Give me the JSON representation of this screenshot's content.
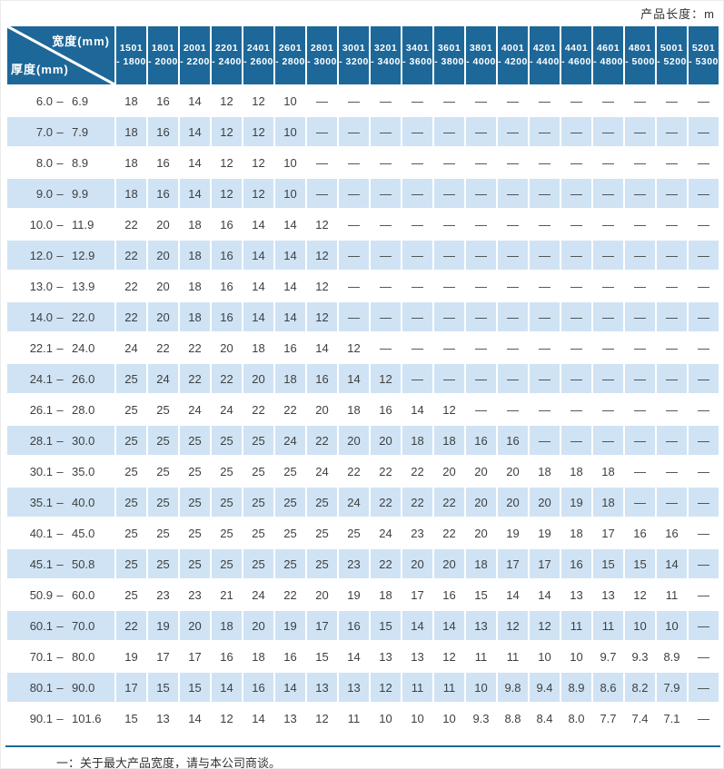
{
  "page": {
    "top_right_label": "产品长度：m",
    "footnote": "一：关于最大产品宽度，请与本公司商谈。"
  },
  "colors": {
    "header_blue": "#1d6899",
    "stripe_blue": "#cfe3f4",
    "rule_blue": "#1d6899",
    "cell_text": "#3f3f3f"
  },
  "table": {
    "range_dash": "–",
    "corner": {
      "top_right": "宽度(mm)",
      "bottom_left": "厚度(mm)"
    },
    "columns": [
      {
        "from": "1501",
        "to": "- 1800"
      },
      {
        "from": "1801",
        "to": "- 2000"
      },
      {
        "from": "2001",
        "to": "- 2200"
      },
      {
        "from": "2201",
        "to": "- 2400"
      },
      {
        "from": "2401",
        "to": "- 2600"
      },
      {
        "from": "2601",
        "to": "- 2800"
      },
      {
        "from": "2801",
        "to": "- 3000"
      },
      {
        "from": "3001",
        "to": "- 3200"
      },
      {
        "from": "3201",
        "to": "- 3400"
      },
      {
        "from": "3401",
        "to": "- 3600"
      },
      {
        "from": "3601",
        "to": "- 3800"
      },
      {
        "from": "3801",
        "to": "- 4000"
      },
      {
        "from": "4001",
        "to": "- 4200"
      },
      {
        "from": "4201",
        "to": "- 4400"
      },
      {
        "from": "4401",
        "to": "- 4600"
      },
      {
        "from": "4601",
        "to": "- 4800"
      },
      {
        "from": "4801",
        "to": "- 5000"
      },
      {
        "from": "5001",
        "to": "- 5200"
      },
      {
        "from": "5201",
        "to": "- 5300"
      }
    ],
    "rows": [
      {
        "min": "6.0",
        "max": "6.9",
        "values": [
          "18",
          "16",
          "14",
          "12",
          "12",
          "10",
          "—",
          "—",
          "—",
          "—",
          "—",
          "—",
          "—",
          "—",
          "—",
          "—",
          "—",
          "—",
          "—"
        ]
      },
      {
        "min": "7.0",
        "max": "7.9",
        "values": [
          "18",
          "16",
          "14",
          "12",
          "12",
          "10",
          "—",
          "—",
          "—",
          "—",
          "—",
          "—",
          "—",
          "—",
          "—",
          "—",
          "—",
          "—",
          "—"
        ]
      },
      {
        "min": "8.0",
        "max": "8.9",
        "values": [
          "18",
          "16",
          "14",
          "12",
          "12",
          "10",
          "—",
          "—",
          "—",
          "—",
          "—",
          "—",
          "—",
          "—",
          "—",
          "—",
          "—",
          "—",
          "—"
        ]
      },
      {
        "min": "9.0",
        "max": "9.9",
        "values": [
          "18",
          "16",
          "14",
          "12",
          "12",
          "10",
          "—",
          "—",
          "—",
          "—",
          "—",
          "—",
          "—",
          "—",
          "—",
          "—",
          "—",
          "—",
          "—"
        ]
      },
      {
        "min": "10.0",
        "max": "11.9",
        "values": [
          "22",
          "20",
          "18",
          "16",
          "14",
          "14",
          "12",
          "—",
          "—",
          "—",
          "—",
          "—",
          "—",
          "—",
          "—",
          "—",
          "—",
          "—",
          "—"
        ]
      },
      {
        "min": "12.0",
        "max": "12.9",
        "values": [
          "22",
          "20",
          "18",
          "16",
          "14",
          "14",
          "12",
          "—",
          "—",
          "—",
          "—",
          "—",
          "—",
          "—",
          "—",
          "—",
          "—",
          "—",
          "—"
        ]
      },
      {
        "min": "13.0",
        "max": "13.9",
        "values": [
          "22",
          "20",
          "18",
          "16",
          "14",
          "14",
          "12",
          "—",
          "—",
          "—",
          "—",
          "—",
          "—",
          "—",
          "—",
          "—",
          "—",
          "—",
          "—"
        ]
      },
      {
        "min": "14.0",
        "max": "22.0",
        "values": [
          "22",
          "20",
          "18",
          "16",
          "14",
          "14",
          "12",
          "—",
          "—",
          "—",
          "—",
          "—",
          "—",
          "—",
          "—",
          "—",
          "—",
          "—",
          "—"
        ]
      },
      {
        "min": "22.1",
        "max": "24.0",
        "values": [
          "24",
          "22",
          "22",
          "20",
          "18",
          "16",
          "14",
          "12",
          "—",
          "—",
          "—",
          "—",
          "—",
          "—",
          "—",
          "—",
          "—",
          "—",
          "—"
        ]
      },
      {
        "min": "24.1",
        "max": "26.0",
        "values": [
          "25",
          "24",
          "22",
          "22",
          "20",
          "18",
          "16",
          "14",
          "12",
          "—",
          "—",
          "—",
          "—",
          "—",
          "—",
          "—",
          "—",
          "—",
          "—"
        ]
      },
      {
        "min": "26.1",
        "max": "28.0",
        "values": [
          "25",
          "25",
          "24",
          "24",
          "22",
          "22",
          "20",
          "18",
          "16",
          "14",
          "12",
          "—",
          "—",
          "—",
          "—",
          "—",
          "—",
          "—",
          "—"
        ]
      },
      {
        "min": "28.1",
        "max": "30.0",
        "values": [
          "25",
          "25",
          "25",
          "25",
          "25",
          "24",
          "22",
          "20",
          "20",
          "18",
          "18",
          "16",
          "16",
          "—",
          "—",
          "—",
          "—",
          "—",
          "—"
        ]
      },
      {
        "min": "30.1",
        "max": "35.0",
        "values": [
          "25",
          "25",
          "25",
          "25",
          "25",
          "25",
          "24",
          "22",
          "22",
          "22",
          "20",
          "20",
          "20",
          "18",
          "18",
          "18",
          "—",
          "—",
          "—"
        ]
      },
      {
        "min": "35.1",
        "max": "40.0",
        "values": [
          "25",
          "25",
          "25",
          "25",
          "25",
          "25",
          "25",
          "24",
          "22",
          "22",
          "22",
          "20",
          "20",
          "20",
          "19",
          "18",
          "—",
          "—",
          "—"
        ]
      },
      {
        "min": "40.1",
        "max": "45.0",
        "values": [
          "25",
          "25",
          "25",
          "25",
          "25",
          "25",
          "25",
          "25",
          "24",
          "23",
          "22",
          "20",
          "19",
          "19",
          "18",
          "17",
          "16",
          "16",
          "—"
        ]
      },
      {
        "min": "45.1",
        "max": "50.8",
        "values": [
          "25",
          "25",
          "25",
          "25",
          "25",
          "25",
          "25",
          "23",
          "22",
          "20",
          "20",
          "18",
          "17",
          "17",
          "16",
          "15",
          "15",
          "14",
          "—"
        ]
      },
      {
        "min": "50.9",
        "max": "60.0",
        "values": [
          "25",
          "23",
          "23",
          "21",
          "24",
          "22",
          "20",
          "19",
          "18",
          "17",
          "16",
          "15",
          "14",
          "14",
          "13",
          "13",
          "12",
          "11",
          "—"
        ]
      },
      {
        "min": "60.1",
        "max": "70.0",
        "values": [
          "22",
          "19",
          "20",
          "18",
          "20",
          "19",
          "17",
          "16",
          "15",
          "14",
          "14",
          "13",
          "12",
          "12",
          "11",
          "11",
          "10",
          "10",
          "—"
        ]
      },
      {
        "min": "70.1",
        "max": "80.0",
        "values": [
          "19",
          "17",
          "17",
          "16",
          "18",
          "16",
          "15",
          "14",
          "13",
          "13",
          "12",
          "11",
          "11",
          "10",
          "10",
          "9.7",
          "9.3",
          "8.9",
          "—"
        ]
      },
      {
        "min": "80.1",
        "max": "90.0",
        "values": [
          "17",
          "15",
          "15",
          "14",
          "16",
          "14",
          "13",
          "13",
          "12",
          "11",
          "11",
          "10",
          "9.8",
          "9.4",
          "8.9",
          "8.6",
          "8.2",
          "7.9",
          "—"
        ]
      },
      {
        "min": "90.1",
        "max": "101.6",
        "values": [
          "15",
          "13",
          "14",
          "12",
          "14",
          "13",
          "12",
          "11",
          "10",
          "10",
          "10",
          "9.3",
          "8.8",
          "8.4",
          "8.0",
          "7.7",
          "7.4",
          "7.1",
          "—"
        ]
      }
    ]
  }
}
